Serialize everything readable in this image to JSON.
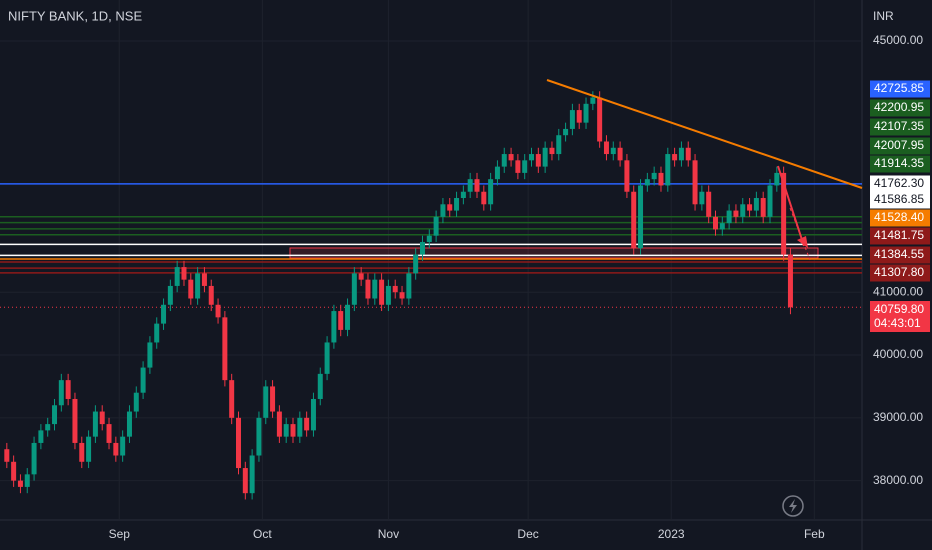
{
  "chart_data": {
    "type": "candlestick",
    "title": "NIFTY BANK, 1D, NSE",
    "currency": "INR",
    "up_color": "#089981",
    "down_color": "#f23645",
    "xlim": [
      -1,
      125.5
    ],
    "xticks": [
      {
        "value": 16.5,
        "label": "Sep"
      },
      {
        "value": 37.5,
        "label": "Oct"
      },
      {
        "value": 56,
        "label": "Nov"
      },
      {
        "value": 76.5,
        "label": "Dec"
      },
      {
        "value": 97.5,
        "label": "2023"
      },
      {
        "value": 118.5,
        "label": "Feb"
      }
    ],
    "ylim": [
      45653,
      37373
    ],
    "yticks": [
      {
        "value": 45000,
        "label": "45000.00"
      },
      {
        "value": 41000,
        "label": "41000.00"
      },
      {
        "value": 40000,
        "label": "40000.00"
      },
      {
        "value": 39000,
        "label": "39000.00"
      },
      {
        "value": 38000,
        "label": "38000.00"
      }
    ],
    "grid": true,
    "open": [
      38500,
      38300,
      38000,
      37900,
      38100,
      38600,
      38800,
      38900,
      39200,
      39600,
      39300,
      38600,
      38300,
      38700,
      39100,
      38900,
      38600,
      38400,
      38700,
      39100,
      39400,
      39800,
      40200,
      40500,
      40800,
      41100,
      41400,
      41200,
      40900,
      41300,
      41100,
      40800,
      40600,
      39600,
      39000,
      38200,
      37800,
      38400,
      39000,
      39500,
      39100,
      38700,
      38900,
      38700,
      39000,
      38800,
      39300,
      39700,
      40200,
      40700,
      40400,
      40800,
      41300,
      41200,
      40900,
      41200,
      40800,
      41100,
      41000,
      40900,
      41300,
      41600,
      41800,
      41900,
      42200,
      42400,
      42300,
      42500,
      42600,
      42800,
      42600,
      42400,
      42800,
      43000,
      43200,
      43100,
      42900,
      43100,
      43200,
      43000,
      43300,
      43200,
      43500,
      43600,
      43900,
      43700,
      44000,
      44100,
      43400,
      43200,
      43300,
      43100,
      42600,
      41700,
      42700,
      42800,
      42900,
      42700,
      43200,
      43100,
      43300,
      43100,
      42400,
      42600,
      42200,
      42000,
      42100,
      42300,
      42200,
      42400,
      42300,
      42500,
      42200,
      42700,
      42900,
      41600
    ],
    "high": [
      38600,
      38400,
      38100,
      38200,
      38700,
      38900,
      39000,
      39300,
      39700,
      39700,
      39400,
      38700,
      38800,
      39200,
      39200,
      39000,
      38700,
      38800,
      39200,
      39500,
      39900,
      40300,
      40600,
      40900,
      41200,
      41500,
      41500,
      41300,
      41400,
      41400,
      41200,
      40900,
      40700,
      39700,
      39100,
      38300,
      38500,
      39100,
      39600,
      39600,
      39200,
      39000,
      39000,
      39100,
      39100,
      39400,
      39800,
      40300,
      40800,
      40800,
      40900,
      41400,
      41400,
      41300,
      41300,
      41300,
      41200,
      41200,
      41100,
      41400,
      41700,
      41900,
      42000,
      42300,
      42500,
      42500,
      42600,
      42700,
      42900,
      42900,
      42700,
      42900,
      43100,
      43300,
      43300,
      43200,
      43200,
      43300,
      43300,
      43400,
      43400,
      43600,
      43700,
      44000,
      44000,
      44100,
      44200,
      44200,
      43500,
      43400,
      43400,
      43200,
      42700,
      42800,
      42900,
      43000,
      43000,
      43300,
      43300,
      43400,
      43400,
      43200,
      42700,
      42700,
      42300,
      42200,
      42400,
      42400,
      42500,
      42500,
      42600,
      42600,
      42800,
      43000,
      43000,
      41700
    ],
    "low": [
      38200,
      37900,
      37800,
      37800,
      38000,
      38500,
      38700,
      38800,
      39100,
      39200,
      38500,
      38200,
      38200,
      38600,
      38800,
      38500,
      38300,
      38300,
      38600,
      39000,
      39300,
      39700,
      40100,
      40400,
      40700,
      41000,
      41100,
      40800,
      40800,
      41000,
      40700,
      40500,
      39500,
      38900,
      38100,
      37700,
      37700,
      38300,
      38900,
      39000,
      38600,
      38600,
      38600,
      38600,
      38700,
      38700,
      39200,
      39600,
      40100,
      40300,
      40300,
      40700,
      41100,
      40800,
      40800,
      40700,
      40700,
      40900,
      40800,
      40800,
      41200,
      41500,
      41700,
      41800,
      42100,
      42200,
      42200,
      42400,
      42500,
      42500,
      42300,
      42300,
      42700,
      42900,
      43000,
      42800,
      42800,
      43000,
      42900,
      42900,
      43100,
      43100,
      43400,
      43500,
      43600,
      43600,
      43900,
      43300,
      43100,
      43100,
      43000,
      42500,
      41600,
      41600,
      42600,
      42700,
      42600,
      42600,
      43000,
      43000,
      43000,
      42300,
      42300,
      42100,
      41900,
      41900,
      42000,
      42100,
      42100,
      42200,
      42200,
      42100,
      42100,
      42600,
      41500,
      40650
    ],
    "close": [
      38300,
      38000,
      37900,
      38100,
      38600,
      38800,
      38900,
      39200,
      39600,
      39300,
      38600,
      38300,
      38700,
      39100,
      38900,
      38600,
      38400,
      38700,
      39100,
      39400,
      39800,
      40200,
      40500,
      40800,
      41100,
      41400,
      41200,
      40900,
      41300,
      41100,
      40800,
      40600,
      39600,
      39000,
      38200,
      37800,
      38400,
      39000,
      39500,
      39100,
      38700,
      38900,
      38700,
      39000,
      38800,
      39300,
      39700,
      40200,
      40700,
      40400,
      40800,
      41300,
      41200,
      40900,
      41200,
      40800,
      41100,
      41000,
      40900,
      41300,
      41600,
      41800,
      41900,
      42200,
      42400,
      42300,
      42500,
      42600,
      42800,
      42600,
      42400,
      42800,
      43000,
      43200,
      43100,
      42900,
      43100,
      43200,
      43000,
      43300,
      43200,
      43500,
      43600,
      43900,
      43700,
      44000,
      44100,
      43400,
      43200,
      43300,
      43100,
      42600,
      41700,
      42700,
      42800,
      42900,
      42700,
      43200,
      43100,
      43300,
      43100,
      42400,
      42600,
      42200,
      42000,
      42100,
      42300,
      42200,
      42400,
      42300,
      42500,
      42200,
      42700,
      42900,
      41600,
      40759.8
    ],
    "levels": [
      {
        "value": 42725.85,
        "color": "#2962ff"
      },
      {
        "value": 42200.95,
        "color": "#1b5e20"
      },
      {
        "value": 42107.35,
        "color": "#1b5e20"
      },
      {
        "value": 42007.95,
        "color": "#1b5e20"
      },
      {
        "value": 41914.35,
        "color": "#1b5e20"
      },
      {
        "value": 41762.3,
        "label": "41762.30",
        "color": "#ffffff"
      },
      {
        "value": 41586.85,
        "color": "#ffffff"
      },
      {
        "value": 41528.4,
        "label": "41528.40",
        "color": "#f57c00"
      },
      {
        "value": 41481.75,
        "color": "#8e1a1a"
      },
      {
        "value": 41384.55,
        "color": "#8e1a1a"
      },
      {
        "value": 41307.8,
        "label": "41307.80",
        "color": "#8e1a1a"
      }
    ],
    "last_price": {
      "value": 40759.8,
      "label": "40759.80",
      "countdown": "04:43:01",
      "color": "#f23645"
    }
  }
}
